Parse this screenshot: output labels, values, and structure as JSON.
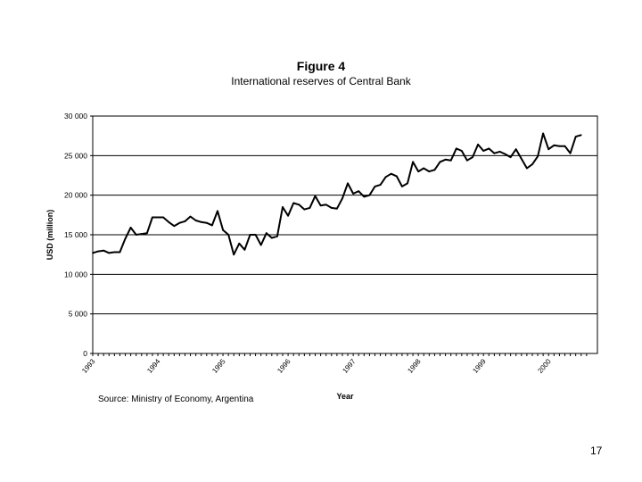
{
  "slide": {
    "page_number": "17",
    "source_note": "Source: Ministry of Economy, Argentina"
  },
  "chart_data": {
    "type": "line",
    "figure_label": "Figure 4",
    "title": "International reserves of Central Bank",
    "xlabel": "Year",
    "ylabel": "USD (million)",
    "ylim": [
      0,
      30000
    ],
    "y_ticks": [
      0,
      5000,
      10000,
      15000,
      20000,
      25000,
      30000
    ],
    "y_tick_labels": [
      "0",
      "5 000",
      "10 000",
      "15 000",
      "20 000",
      "25 000",
      "30 000"
    ],
    "x_tick_labels": [
      "1993",
      "1994",
      "1995",
      "1996",
      "1997",
      "1998",
      "1999",
      "2000"
    ],
    "x_tick_positions": [
      1993.0,
      1994.0,
      1995.0,
      1996.0,
      1997.0,
      1998.0,
      1999.0,
      2000.0
    ],
    "xlim": [
      1993.0,
      2000.75
    ],
    "grid": true,
    "line_color": "#000000",
    "series": [
      {
        "frequency": "monthly",
        "start": "1993-01",
        "values": [
          12700,
          12900,
          13000,
          12700,
          12800,
          12800,
          14500,
          15900,
          15000,
          15100,
          15200,
          17200,
          17200,
          17200,
          16600,
          16100,
          16500,
          16700,
          17300,
          16800,
          16600,
          16500,
          16200,
          18000,
          15600,
          15000,
          12500,
          13900,
          13100,
          15000,
          15000,
          13700,
          15200,
          14600,
          14800,
          18500,
          17400,
          19000,
          18800,
          18200,
          18400,
          19900,
          18700,
          18800,
          18400,
          18300,
          19600,
          21500,
          20200,
          20500,
          19800,
          20000,
          21100,
          21300,
          22300,
          22700,
          22400,
          21100,
          21500,
          24200,
          23000,
          23400,
          23000,
          23200,
          24200,
          24500,
          24400,
          25900,
          25600,
          24400,
          24800,
          26400,
          25600,
          25900,
          25300,
          25500,
          25200,
          24800,
          25800,
          24600,
          23400,
          23900,
          24900,
          27800,
          25800,
          26300,
          26200,
          26200,
          25300,
          27400,
          27600
        ]
      }
    ]
  }
}
